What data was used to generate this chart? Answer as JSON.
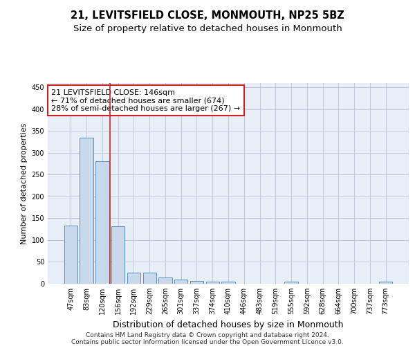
{
  "title": "21, LEVITSFIELD CLOSE, MONMOUTH, NP25 5BZ",
  "subtitle": "Size of property relative to detached houses in Monmouth",
  "xlabel": "Distribution of detached houses by size in Monmouth",
  "ylabel": "Number of detached properties",
  "categories": [
    "47sqm",
    "83sqm",
    "120sqm",
    "156sqm",
    "192sqm",
    "229sqm",
    "265sqm",
    "301sqm",
    "337sqm",
    "374sqm",
    "410sqm",
    "446sqm",
    "483sqm",
    "519sqm",
    "555sqm",
    "592sqm",
    "628sqm",
    "664sqm",
    "700sqm",
    "737sqm",
    "773sqm"
  ],
  "values": [
    134,
    335,
    281,
    132,
    26,
    26,
    15,
    10,
    6,
    5,
    4,
    0,
    0,
    0,
    4,
    0,
    0,
    0,
    0,
    0,
    4
  ],
  "bar_color": "#c9d9ec",
  "bar_edge_color": "#5a8fc0",
  "grid_color": "#c0c8d8",
  "background_color": "#e8eef7",
  "vline_color": "#cc2222",
  "vline_pos": 2.5,
  "annotation_text": "21 LEVITSFIELD CLOSE: 146sqm\n← 71% of detached houses are smaller (674)\n28% of semi-detached houses are larger (267) →",
  "annotation_box_color": "#ffffff",
  "annotation_box_edge": "#cc2222",
  "footer_line1": "Contains HM Land Registry data © Crown copyright and database right 2024.",
  "footer_line2": "Contains public sector information licensed under the Open Government Licence v3.0.",
  "title_fontsize": 10.5,
  "subtitle_fontsize": 9.5,
  "ylabel_fontsize": 8,
  "xlabel_fontsize": 9,
  "tick_fontsize": 7,
  "annot_fontsize": 8,
  "footer_fontsize": 6.5,
  "ylim": [
    0,
    460
  ]
}
